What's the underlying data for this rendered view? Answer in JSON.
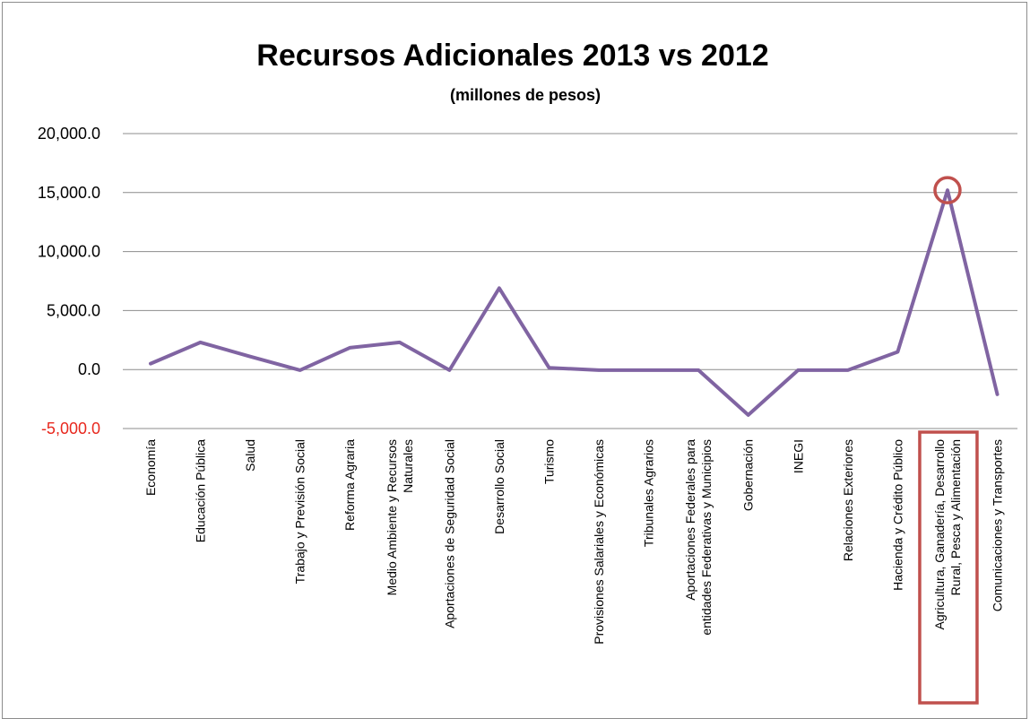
{
  "chart_data": {
    "type": "line",
    "title": "Recursos Adicionales 2013 vs 2012",
    "subtitle": "(millones de pesos)",
    "xlabel": "",
    "ylabel": "",
    "ylim": [
      -5000,
      20000
    ],
    "yticks": [
      20000,
      15000,
      10000,
      5000,
      0,
      -5000
    ],
    "ytick_labels": [
      "20,000.0",
      "15,000.0",
      "10,000.0",
      "5,000.0",
      "0.0",
      "-5,000.0"
    ],
    "negative_tick_color": "#e8281e",
    "grid": true,
    "legend": "none",
    "categories": [
      [
        "Economía"
      ],
      [
        "Educación Pública"
      ],
      [
        "Salud"
      ],
      [
        "Trabajo y Previsión Social"
      ],
      [
        "Reforma Agraria"
      ],
      [
        "Medio Ambiente y Recursos",
        "Naturales"
      ],
      [
        "Aportaciones de Seguridad Social"
      ],
      [
        "Desarrollo Social"
      ],
      [
        "Turismo"
      ],
      [
        "Provisiones Salariales y Económicas"
      ],
      [
        "Tribunales Agrarios"
      ],
      [
        "Aportaciones Federales para",
        "entidades Federativas y Municipios"
      ],
      [
        "Gobernación"
      ],
      [
        "INEGI"
      ],
      [
        "Relaciones Exteriores"
      ],
      [
        "Hacienda y Crédito Público"
      ],
      [
        "Agricultura, Ganadería, Desarrollo",
        "Rural, Pesca y Alimentación"
      ],
      [
        "Comunicaciones y Transportes"
      ]
    ],
    "series": [
      {
        "values": [
          500,
          2300,
          1100,
          -50,
          1850,
          2300,
          -50,
          6900,
          150,
          -50,
          -50,
          -50,
          -3850,
          -50,
          -50,
          1500,
          15200,
          -2100
        ],
        "color": "#8064a2"
      }
    ],
    "highlight": {
      "index": 16,
      "circle_color": "#c0504d",
      "box_color": "#c0504d"
    }
  }
}
